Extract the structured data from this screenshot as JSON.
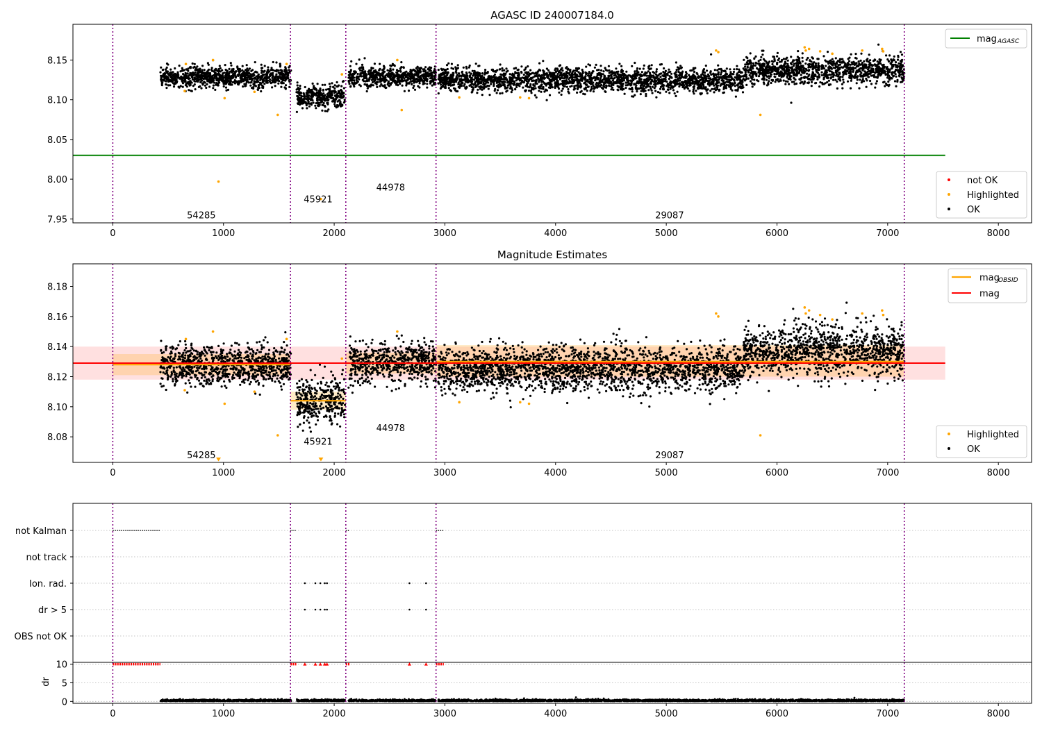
{
  "chart_data": [
    {
      "type": "scatter",
      "title": "AGASC ID 240007184.0",
      "xlabel": "",
      "ylabel": "",
      "xlim": [
        -360,
        8300
      ],
      "ylim": [
        7.945,
        8.195
      ],
      "xticks": [
        0,
        1000,
        2000,
        3000,
        4000,
        5000,
        6000,
        7000,
        8000
      ],
      "yticks": [
        7.95,
        8.0,
        8.05,
        8.1,
        8.15
      ],
      "ytick_labels": [
        "7.95",
        "8.00",
        "8.05",
        "8.10",
        "8.15"
      ],
      "obs_boundaries": [
        0,
        1605,
        2105,
        2920,
        7150
      ],
      "mag_agasc": {
        "value": 8.03,
        "x_range": [
          -360,
          7520
        ]
      },
      "obsid_labels": [
        {
          "x": 800,
          "y": 7.955,
          "text": "54285"
        },
        {
          "x": 1855,
          "y": 7.975,
          "text": "45921"
        },
        {
          "x": 2510,
          "y": 7.99,
          "text": "44978"
        },
        {
          "x": 5030,
          "y": 7.955,
          "text": "29087"
        }
      ],
      "ok_segments": [
        {
          "x0": 430,
          "x1": 1610,
          "mean": 8.128,
          "sd": 0.0065
        },
        {
          "x0": 1660,
          "x1": 2100,
          "mean": 8.104,
          "sd": 0.0075
        },
        {
          "x0": 2130,
          "x1": 2920,
          "mean": 8.129,
          "sd": 0.0065
        },
        {
          "x0": 2940,
          "x1": 5700,
          "mean": 8.125,
          "sd": 0.0075
        },
        {
          "x0": 5700,
          "x1": 7150,
          "mean": 8.137,
          "sd": 0.0085
        }
      ],
      "highlighted_points": [
        [
          650,
          8.111
        ],
        [
          660,
          8.145
        ],
        [
          905,
          8.15
        ],
        [
          955,
          7.997
        ],
        [
          1010,
          8.102
        ],
        [
          1280,
          8.11
        ],
        [
          1490,
          8.081
        ],
        [
          1570,
          8.145
        ],
        [
          1880,
          7.975
        ],
        [
          2070,
          8.132
        ],
        [
          2570,
          8.15
        ],
        [
          2610,
          8.087
        ],
        [
          3130,
          8.103
        ],
        [
          3680,
          8.103
        ],
        [
          3760,
          8.102
        ],
        [
          5450,
          8.162
        ],
        [
          5470,
          8.16
        ],
        [
          5850,
          8.081
        ],
        [
          6250,
          8.166
        ],
        [
          6260,
          8.162
        ],
        [
          6290,
          8.164
        ],
        [
          6390,
          8.161
        ],
        [
          6500,
          8.158
        ],
        [
          6770,
          8.162
        ],
        [
          6950,
          8.164
        ],
        [
          6960,
          8.161
        ]
      ],
      "legend": {
        "top_right": [
          {
            "label": "mag",
            "sub": "AGASC",
            "color": "#008000"
          }
        ],
        "bottom_right": [
          {
            "label": "not OK",
            "color": "#ff0000"
          },
          {
            "label": "Highlighted",
            "color": "#ffa500"
          },
          {
            "label": "OK",
            "color": "#000000"
          }
        ]
      }
    },
    {
      "type": "scatter",
      "title": "Magnitude Estimates",
      "xlabel": "",
      "ylabel": "",
      "xlim": [
        -360,
        8300
      ],
      "ylim": [
        8.063,
        8.195
      ],
      "xticks": [
        0,
        1000,
        2000,
        3000,
        4000,
        5000,
        6000,
        7000,
        8000
      ],
      "yticks": [
        8.08,
        8.1,
        8.12,
        8.14,
        8.16,
        8.18
      ],
      "ytick_labels": [
        "8.08",
        "8.10",
        "8.12",
        "8.14",
        "8.16",
        "8.18"
      ],
      "obs_boundaries": [
        0,
        1605,
        2105,
        2920,
        7150
      ],
      "mag": {
        "value": 8.129,
        "band": [
          8.118,
          8.14
        ],
        "x_range": [
          -360,
          7520
        ]
      },
      "mag_obsid": [
        {
          "x0": 0,
          "x1": 1605,
          "value": 8.128,
          "band": [
            8.121,
            8.135
          ]
        },
        {
          "x0": 1605,
          "x1": 2105,
          "value": 8.104,
          "band": [
            8.098,
            8.11
          ]
        },
        {
          "x0": 2105,
          "x1": 2920,
          "value": 8.129,
          "band": [
            8.122,
            8.136
          ]
        },
        {
          "x0": 2920,
          "x1": 7150,
          "value": 8.13,
          "band": [
            8.12,
            8.141
          ]
        }
      ],
      "obsid_labels": [
        {
          "x": 800,
          "y": 8.068,
          "text": "54285"
        },
        {
          "x": 1855,
          "y": 8.077,
          "text": "45921"
        },
        {
          "x": 2510,
          "y": 8.086,
          "text": "44978"
        },
        {
          "x": 5030,
          "y": 8.068,
          "text": "29087"
        }
      ],
      "ok_segments": [
        {
          "x0": 430,
          "x1": 1610,
          "mean": 8.128,
          "sd": 0.0065
        },
        {
          "x0": 1660,
          "x1": 2100,
          "mean": 8.104,
          "sd": 0.0075
        },
        {
          "x0": 2130,
          "x1": 2920,
          "mean": 8.129,
          "sd": 0.0065
        },
        {
          "x0": 2940,
          "x1": 5700,
          "mean": 8.125,
          "sd": 0.0075
        },
        {
          "x0": 5700,
          "x1": 7150,
          "mean": 8.137,
          "sd": 0.0085
        }
      ],
      "highlighted_points": [
        [
          650,
          8.111
        ],
        [
          660,
          8.145
        ],
        [
          905,
          8.15
        ],
        [
          1010,
          8.102
        ],
        [
          1280,
          8.11
        ],
        [
          1490,
          8.081
        ],
        [
          1570,
          8.145
        ],
        [
          2070,
          8.132
        ],
        [
          2570,
          8.15
        ],
        [
          3130,
          8.103
        ],
        [
          3680,
          8.103
        ],
        [
          3760,
          8.102
        ],
        [
          5450,
          8.162
        ],
        [
          5470,
          8.16
        ],
        [
          5850,
          8.081
        ],
        [
          6250,
          8.166
        ],
        [
          6260,
          8.162
        ],
        [
          6290,
          8.164
        ],
        [
          6390,
          8.161
        ],
        [
          6500,
          8.158
        ],
        [
          6770,
          8.162
        ],
        [
          6950,
          8.164
        ],
        [
          6960,
          8.161
        ]
      ],
      "offscale_markers": [
        955,
        1880
      ],
      "legend": {
        "top_right": [
          {
            "label": "mag",
            "sub": "OBSID",
            "color": "#ffa500"
          },
          {
            "label": "mag",
            "sub": "",
            "color": "#ff0000"
          }
        ],
        "bottom_right": [
          {
            "label": "Highlighted",
            "color": "#ffa500"
          },
          {
            "label": "OK",
            "color": "#000000"
          }
        ]
      }
    },
    {
      "type": "scatter",
      "title": "",
      "xlabel": "",
      "ylabel": "dr",
      "xlim": [
        -360,
        8300
      ],
      "xticks": [
        0,
        1000,
        2000,
        3000,
        4000,
        5000,
        6000,
        7000,
        8000
      ],
      "obs_boundaries": [
        0,
        1605,
        2105,
        2920,
        7150
      ],
      "flag_rows": [
        "not Kalman",
        "not track",
        "Ion. rad.",
        "dr > 5",
        "OBS not OK"
      ],
      "flag_points": {
        "not Kalman": {
          "ranges": [
            [
              0,
              430
            ],
            [
              1605,
              1660
            ],
            [
              2105,
              2140
            ],
            [
              2920,
              2990
            ]
          ],
          "points": []
        },
        "not track": {
          "ranges": [],
          "points": []
        },
        "Ion. rad.": {
          "ranges": [],
          "points": [
            1735,
            1830,
            1875,
            1915,
            1935,
            2680,
            2830
          ]
        },
        "dr > 5": {
          "ranges": [],
          "points": [
            1735,
            1830,
            1875,
            1915,
            1935,
            2680,
            2830
          ]
        },
        "OBS not OK": {
          "ranges": [],
          "points": []
        }
      },
      "dr_ylim": [
        -0.5,
        10.5
      ],
      "dr_yticks": [
        0,
        5,
        10
      ],
      "dr_ok_segments": [
        [
          430,
          1610
        ],
        [
          1660,
          2100
        ],
        [
          2130,
          2920
        ],
        [
          2940,
          7150
        ]
      ],
      "dr_clipped": {
        "ranges": [
          [
            0,
            430
          ],
          [
            1605,
            1660
          ],
          [
            2105,
            2140
          ],
          [
            2920,
            2990
          ]
        ],
        "points": [
          1735,
          1830,
          1875,
          1915,
          1935,
          2680,
          2830
        ]
      }
    }
  ]
}
